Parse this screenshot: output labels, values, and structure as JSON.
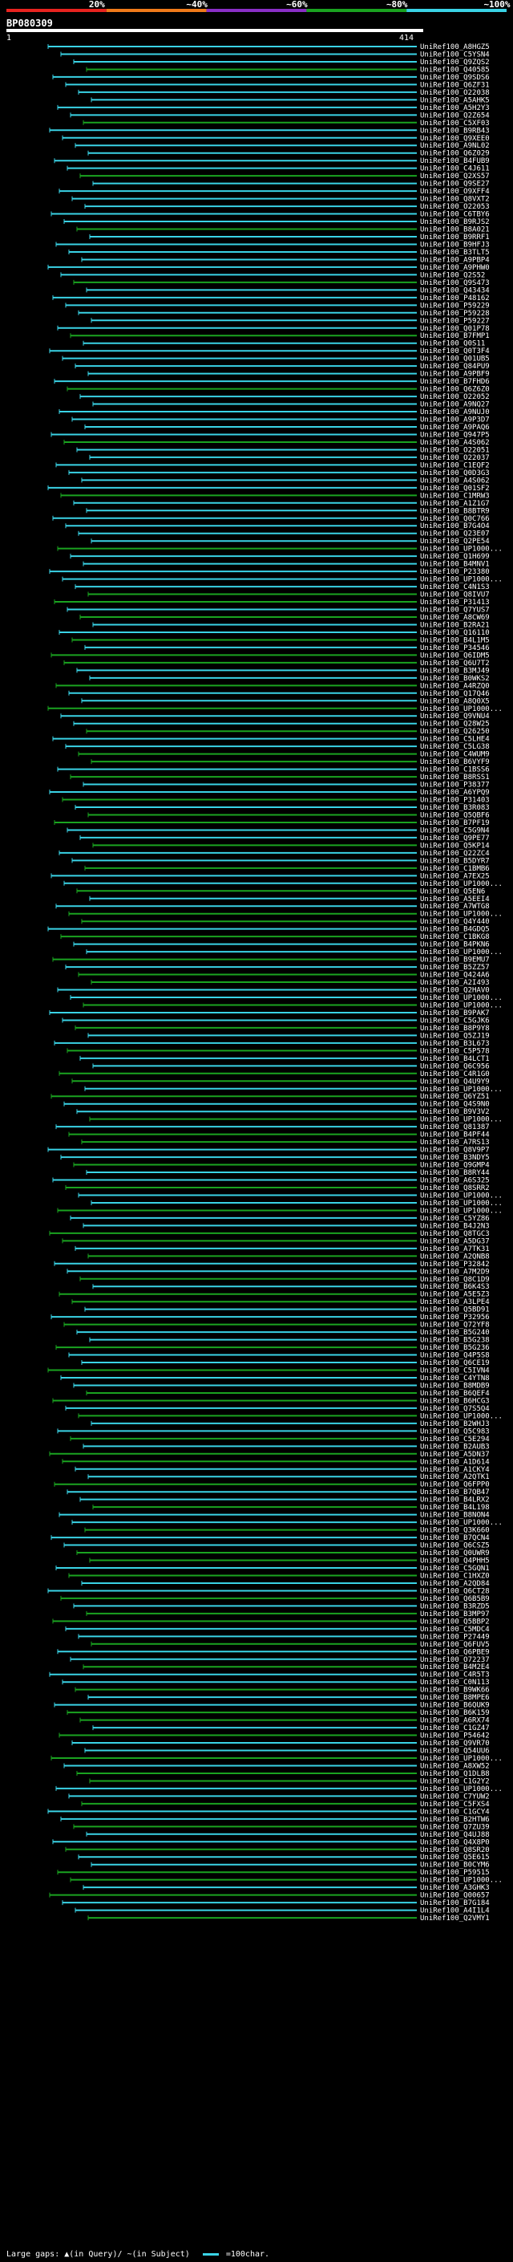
{
  "legend": {
    "colors": [
      "#e8231f",
      "#f07a1a",
      "#8a2fc6",
      "#1aa320",
      "#3ad3e6"
    ],
    "labels": [
      "20%",
      "~40%",
      "~60%",
      "~80%",
      "~100%"
    ]
  },
  "query": {
    "name": "BP080309",
    "start": "1",
    "end": "414"
  },
  "footer": {
    "large_gaps": "Large gaps: ▲(in Query)/ ~(in Subject)",
    "scale": "=100char."
  },
  "hits": [
    "UniRef100_A8HGZ5",
    "UniRef100_C5YSN4",
    "UniRef100_Q9ZQS2",
    "UniRef100_Q40585",
    "UniRef100_Q9SDS6",
    "UniRef100_Q6ZF31",
    "UniRef100_O22038",
    "UniRef100_A5AHK5",
    "UniRef100_A5H2Y3",
    "UniRef100_Q2Z654",
    "UniRef100_C5XF03",
    "UniRef100_B9RB43",
    "UniRef100_Q9XEE0",
    "UniRef100_A9NL02",
    "UniRef100_Q6Z029",
    "UniRef100_B4FUB9",
    "UniRef100_C4J611",
    "UniRef100_Q2XS57",
    "UniRef100_Q9SE27",
    "UniRef100_O9XFF4",
    "UniRef100_Q8VXT2",
    "UniRef100_O22053",
    "UniRef100_C6TBY6",
    "UniRef100_B9RJS2",
    "UniRef100_B8A021",
    "UniRef100_B9RRF1",
    "UniRef100_B9HFJ3",
    "UniRef100_B3TLT5",
    "UniRef100_A9PBP4",
    "UniRef100_A9PHW0",
    "UniRef100_Q2S52",
    "UniRef100_Q9S473",
    "UniRef100_Q43434",
    "UniRef100_P48162",
    "UniRef100_P59229",
    "UniRef100_P59228",
    "UniRef100_P59227",
    "UniRef100_Q01P78",
    "UniRef100_B7FMP1",
    "UniRef100_Q0S11",
    "UniRef100_Q0T3F4",
    "UniRef100_Q01UB5",
    "UniRef100_Q84PU9",
    "UniRef100_A9PBF9",
    "UniRef100_B7FHD6",
    "UniRef100_Q6Z6Z0",
    "UniRef100_O22052",
    "UniRef100_A9NQ27",
    "UniRef100_A9NUJ0",
    "UniRef100_A9P3D7",
    "UniRef100_A9PAQ6",
    "UniRef100_Q947P5",
    "UniRef100_A4S062",
    "UniRef100_O22051",
    "UniRef100_O22037",
    "UniRef100_C1EQF2",
    "UniRef100_Q0D3G3",
    "UniRef100_A4S062",
    "UniRef100_Q01SF2",
    "UniRef100_C1MRW3",
    "UniRef100_A1Z1G7",
    "UniRef100_B8BTR9",
    "UniRef100_Q0C766",
    "UniRef100_B7G4O4",
    "UniRef100_Q23E07",
    "UniRef100_Q2PE54",
    "UniRef100_UP1000...",
    "UniRef100_Q1H699",
    "UniRef100_B4MNV1",
    "UniRef100_P23380",
    "UniRef100_UP1000...",
    "UniRef100_C4N1S3",
    "UniRef100_Q8IVU7",
    "UniRef100_P31413",
    "UniRef100_Q7YUS7",
    "UniRef100_A8CW69",
    "UniRef100_B2RA21",
    "UniRef100_Q16110",
    "UniRef100_B4L1M5",
    "UniRef100_P34546",
    "UniRef100_Q6IDM5",
    "UniRef100_Q6U7T2",
    "UniRef100_B3MJ49",
    "UniRef100_B0WKS2",
    "UniRef100_A4RZQ0",
    "UniRef100_Q17Q46",
    "UniRef100_A8Q0X5",
    "UniRef100_UP1000...",
    "UniRef100_Q9VNU4",
    "UniRef100_Q28W25",
    "UniRef100_Q26250",
    "UniRef100_C5LHE4",
    "UniRef100_C5LG38",
    "UniRef100_C4WUM9",
    "UniRef100_B6VYF9",
    "UniRef100_C1BSS6",
    "UniRef100_B8RSS1",
    "UniRef100_P38377",
    "UniRef100_A6YPQ9",
    "UniRef100_P31403",
    "UniRef100_B3R083",
    "UniRef100_Q5QBF6",
    "UniRef100_B7PF19",
    "UniRef100_C5G9N4",
    "UniRef100_Q9PE77",
    "UniRef100_Q5KP14",
    "UniRef100_Q22ZC4",
    "UniRef100_B5DYR7",
    "UniRef100_C1BMB6",
    "UniRef100_A7EX25",
    "UniRef100_UP1000...",
    "UniRef100_Q5EN6",
    "UniRef100_A5EEI4",
    "UniRef100_A7WTG8",
    "UniRef100_UP1000...",
    "UniRef100_Q4Y440",
    "UniRef100_B4GDQ5",
    "UniRef100_C1BKG8",
    "UniRef100_B4PKN6",
    "UniRef100_UP1000...",
    "UniRef100_B9EMU7",
    "UniRef100_B5ZZ57",
    "UniRef100_Q424A6",
    "UniRef100_A2I493",
    "UniRef100_Q2HAV0",
    "UniRef100_UP1000...",
    "UniRef100_UP1000...",
    "UniRef100_B9PAK7",
    "UniRef100_C5GJK6",
    "UniRef100_B8P9Y8",
    "UniRef100_Q5ZJ19",
    "UniRef100_B3L673",
    "UniRef100_C5P578",
    "UniRef100_B4LCT1",
    "UniRef100_Q6C956",
    "UniRef100_C4R1G0",
    "UniRef100_Q4U9Y9",
    "UniRef100_UP1000...",
    "UniRef100_Q6YZ51",
    "UniRef100_Q4S9N0",
    "UniRef100_B9V3V2",
    "UniRef100_UP1000...",
    "UniRef100_Q81387",
    "UniRef100_B4PF44",
    "UniRef100_A7RS13",
    "UniRef100_Q8V9P7",
    "UniRef100_B3NDY5",
    "UniRef100_Q9GMP4",
    "UniRef100_B8RY44",
    "UniRef100_A6S325",
    "UniRef100_Q8SRR2",
    "UniRef100_UP1000...",
    "UniRef100_UP1000...",
    "UniRef100_UP1000...",
    "UniRef100_C5YZ86",
    "UniRef100_B4J2N3",
    "UniRef100_Q8TGC3",
    "UniRef100_A5DG37",
    "UniRef100_A7TK31",
    "UniRef100_A2QNB8",
    "UniRef100_P32842",
    "UniRef100_A7M2D9",
    "UniRef100_Q8C1D9",
    "UniRef100_B6K4S3",
    "UniRef100_A5E5Z3",
    "UniRef100_A3LPE4",
    "UniRef100_Q5BD91",
    "UniRef100_P32956",
    "UniRef100_Q72YF8",
    "UniRef100_B5G240",
    "UniRef100_B5G238",
    "UniRef100_B5G236",
    "UniRef100_Q4P5S8",
    "UniRef100_Q6CE19",
    "UniRef100_C5IVN4",
    "UniRef100_C4YTN8",
    "UniRef100_B8MDB9",
    "UniRef100_B6QEF4",
    "UniRef100_B6HCG3",
    "UniRef100_Q7S5Q4",
    "UniRef100_UP1000...",
    "UniRef100_B2WHJ3",
    "UniRef100_Q5C983",
    "UniRef100_C5E294",
    "UniRef100_B2AUB3",
    "UniRef100_A5DN37",
    "UniRef100_A1D614",
    "UniRef100_A1CKY4",
    "UniRef100_A2QTK1",
    "UniRef100_Q6FPP0",
    "UniRef100_B7QB47",
    "UniRef100_B4LRX2",
    "UniRef100_B4L198",
    "UniRef100_B8NON4",
    "UniRef100_UP1000...",
    "UniRef100_Q3K660",
    "UniRef100_B7QCN4",
    "UniRef100_Q6CSZ5",
    "UniRef100_Q0UWR9",
    "UniRef100_Q4PHH5",
    "UniRef100_C5GQN1",
    "UniRef100_C1HXZ0",
    "UniRef100_A2QD84",
    "UniRef100_Q6CT28",
    "UniRef100_Q6B5B9",
    "UniRef100_B3RZD5",
    "UniRef100_B3MP97",
    "UniRef100_Q5BBP2",
    "UniRef100_C5MDC4",
    "UniRef100_P27449",
    "UniRef100_Q6FUV5",
    "UniRef100_Q6PBE9",
    "UniRef100_O72237",
    "UniRef100_B4M2E4",
    "UniRef100_C4R5T3",
    "UniRef100_C0N113",
    "UniRef100_B9WK66",
    "UniRef100_B8MPE6",
    "UniRef100_B6QUK9",
    "UniRef100_B6K159",
    "UniRef100_A6RX74",
    "UniRef100_C1GZ47",
    "UniRef100_P54642",
    "UniRef100_Q9VR70",
    "UniRef100_Q54UU6",
    "UniRef100_UP1000...",
    "UniRef100_A8XW52",
    "UniRef100_Q1DLB8",
    "UniRef100_C1G2Y2",
    "UniRef100_UP1000...",
    "UniRef100_C7YUW2",
    "UniRef100_C5FXS4",
    "UniRef100_C1GCY4",
    "UniRef100_B2HTW6",
    "UniRef100_Q7ZU39",
    "UniRef100_Q4UJ88",
    "UniRef100_Q4X8P0",
    "UniRef100_Q8SR20",
    "UniRef100_Q5E615",
    "UniRef100_B0CYM6",
    "UniRef100_P59515",
    "UniRef100_UP1000...",
    "UniRef100_A3GHK3",
    "UniRef100_Q00657",
    "UniRef100_B7G184",
    "UniRef100_A4I1L4",
    "UniRef100_Q2VMY1"
  ]
}
